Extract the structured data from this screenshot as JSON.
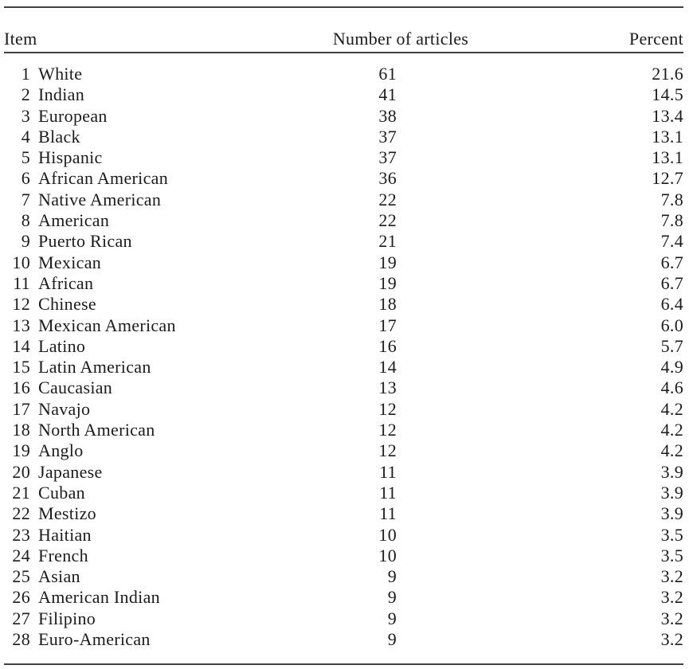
{
  "table": {
    "columns": {
      "item": "Item",
      "articles": "Number of articles",
      "percent": "Percent"
    },
    "rows": [
      [
        "1",
        "White",
        "61",
        "21.6"
      ],
      [
        "2",
        "Indian",
        "41",
        "14.5"
      ],
      [
        "3",
        "European",
        "38",
        "13.4"
      ],
      [
        "4",
        "Black",
        "37",
        "13.1"
      ],
      [
        "5",
        "Hispanic",
        "37",
        "13.1"
      ],
      [
        "6",
        "African American",
        "36",
        "12.7"
      ],
      [
        "7",
        "Native American",
        "22",
        "7.8"
      ],
      [
        "8",
        "American",
        "22",
        "7.8"
      ],
      [
        "9",
        "Puerto Rican",
        "21",
        "7.4"
      ],
      [
        "10",
        "Mexican",
        "19",
        "6.7"
      ],
      [
        "11",
        "African",
        "19",
        "6.7"
      ],
      [
        "12",
        "Chinese",
        "18",
        "6.4"
      ],
      [
        "13",
        "Mexican American",
        "17",
        "6.0"
      ],
      [
        "14",
        "Latino",
        "16",
        "5.7"
      ],
      [
        "15",
        "Latin American",
        "14",
        "4.9"
      ],
      [
        "16",
        "Caucasian",
        "13",
        "4.6"
      ],
      [
        "17",
        "Navajo",
        "12",
        "4.2"
      ],
      [
        "18",
        "North American",
        "12",
        "4.2"
      ],
      [
        "19",
        "Anglo",
        "12",
        "4.2"
      ],
      [
        "20",
        "Japanese",
        "11",
        "3.9"
      ],
      [
        "21",
        "Cuban",
        "11",
        "3.9"
      ],
      [
        "22",
        "Mestizo",
        "11",
        "3.9"
      ],
      [
        "23",
        "Haitian",
        "10",
        "3.5"
      ],
      [
        "24",
        "French",
        "10",
        "3.5"
      ],
      [
        "25",
        "Asian",
        "9",
        "3.2"
      ],
      [
        "26",
        "American Indian",
        "9",
        "3.2"
      ],
      [
        "27",
        "Filipino",
        "9",
        "3.2"
      ],
      [
        "28",
        "Euro-American",
        "9",
        "3.2"
      ]
    ],
    "colors": {
      "text": "#1b1b1b",
      "rule": "#424242",
      "background": "#ffffff"
    }
  }
}
